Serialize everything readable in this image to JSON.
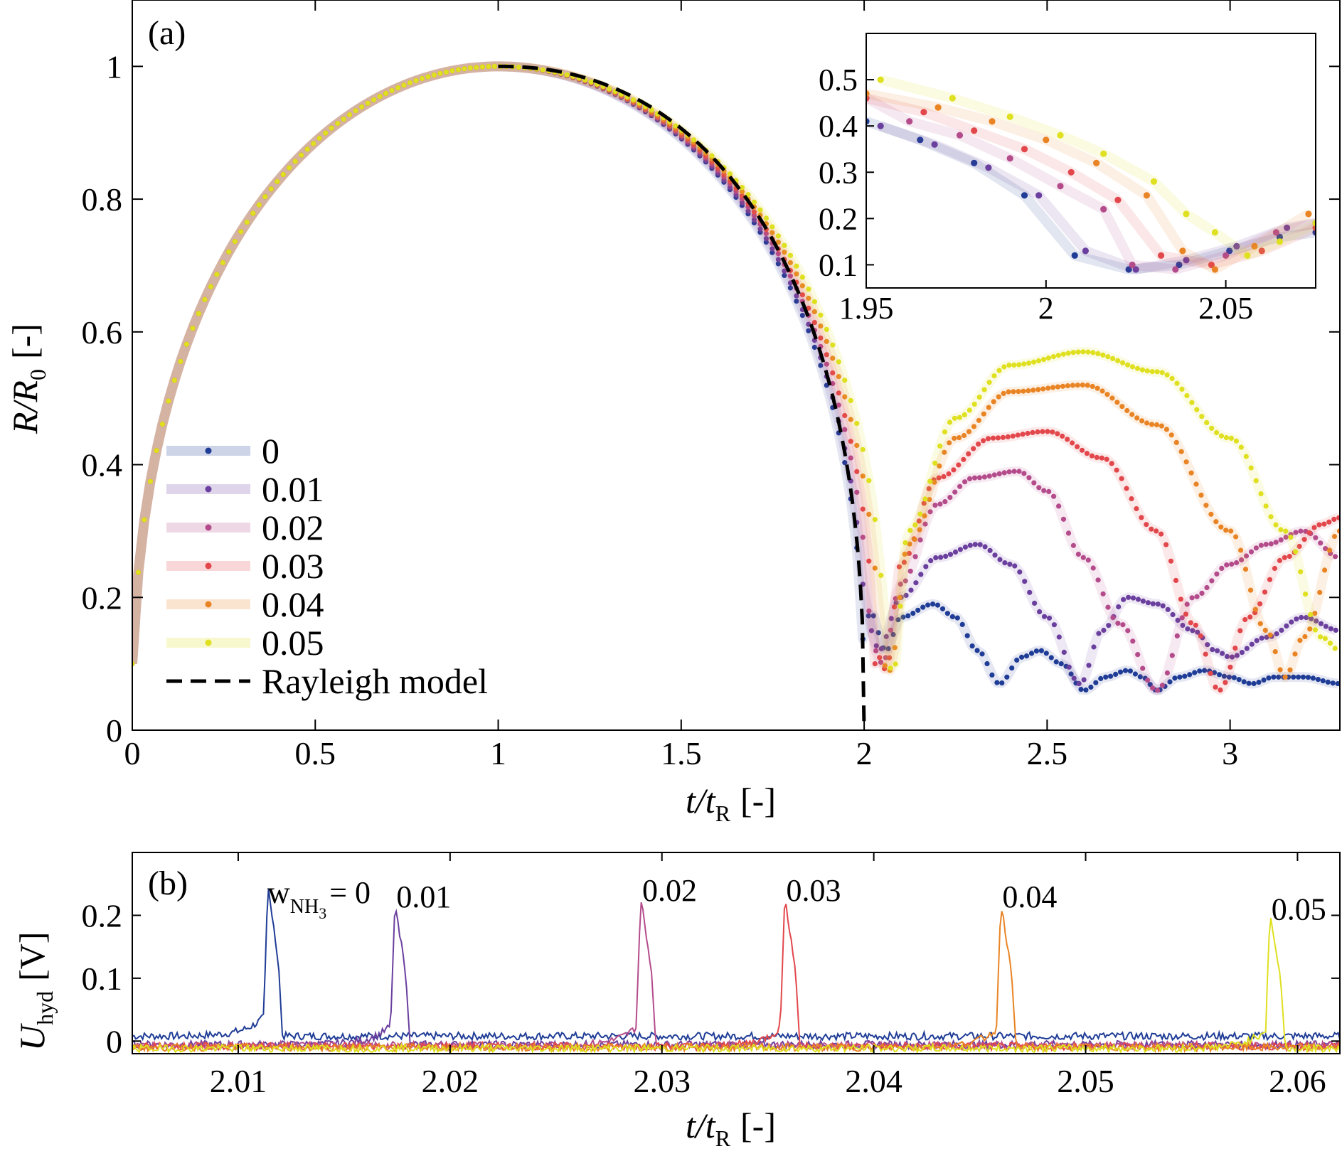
{
  "colors": {
    "0": "#1f3c96",
    "0.01": "#6a3f9e",
    "0.02": "#b44c8c",
    "0.03": "#e2474c",
    "0.04": "#e98424",
    "0.05": "#dfe020",
    "rayleigh": "#000000"
  },
  "chart_data": [
    {
      "type": "scatter",
      "panel_label": "(a)",
      "xlabel": {
        "main": "t/t",
        "sub": "R",
        "unit": "[-]"
      },
      "ylabel": {
        "main": "R/R",
        "sub": "0",
        "unit": "[-]"
      },
      "xlim": [
        0,
        3.3
      ],
      "ylim": [
        0,
        1.1
      ],
      "xticks": [
        0,
        0.5,
        1,
        1.5,
        2,
        2.5,
        3
      ],
      "xtick_labels": [
        "0",
        "0.5",
        "1",
        "1.5",
        "2",
        "2.5",
        "3"
      ],
      "yticks": [
        0,
        0.2,
        0.4,
        0.6,
        0.8,
        1
      ],
      "ytick_labels": [
        "0",
        "0.2",
        "0.4",
        "0.6",
        "0.8",
        "1"
      ],
      "legend_position": "lower-left",
      "series": [
        {
          "name": "0",
          "collapse_time": 2.0,
          "after_collapse": [
            [
              2.015,
              0.18
            ],
            [
              2.06,
              0.12
            ],
            [
              2.1,
              0.17
            ],
            [
              2.19,
              0.19
            ],
            [
              2.25,
              0.17
            ],
            [
              2.31,
              0.12
            ],
            [
              2.37,
              0.07
            ],
            [
              2.43,
              0.11
            ],
            [
              2.48,
              0.12
            ],
            [
              2.54,
              0.1
            ],
            [
              2.6,
              0.06
            ],
            [
              2.66,
              0.08
            ],
            [
              2.72,
              0.09
            ],
            [
              2.76,
              0.08
            ],
            [
              2.8,
              0.06
            ],
            [
              2.86,
              0.08
            ],
            [
              2.93,
              0.09
            ],
            [
              3.0,
              0.08
            ],
            [
              3.06,
              0.07
            ],
            [
              3.12,
              0.08
            ],
            [
              3.2,
              0.08
            ],
            [
              3.3,
              0.07
            ]
          ]
        },
        {
          "name": "0.01",
          "collapse_time": 2.008,
          "after_collapse": [
            [
              2.02,
              0.15
            ],
            [
              2.04,
              0.12
            ],
            [
              2.1,
              0.2
            ],
            [
              2.2,
              0.26
            ],
            [
              2.31,
              0.28
            ],
            [
              2.4,
              0.25
            ],
            [
              2.5,
              0.17
            ],
            [
              2.59,
              0.07
            ],
            [
              2.65,
              0.15
            ],
            [
              2.72,
              0.2
            ],
            [
              2.8,
              0.19
            ],
            [
              2.9,
              0.15
            ],
            [
              2.96,
              0.12
            ],
            [
              3.0,
              0.11
            ],
            [
              3.1,
              0.14
            ],
            [
              3.2,
              0.17
            ],
            [
              3.3,
              0.15
            ]
          ]
        },
        {
          "name": "0.02",
          "collapse_time": 2.02,
          "after_collapse": [
            [
              2.03,
              0.12
            ],
            [
              2.05,
              0.1
            ],
            [
              2.1,
              0.22
            ],
            [
              2.2,
              0.34
            ],
            [
              2.3,
              0.38
            ],
            [
              2.42,
              0.39
            ],
            [
              2.5,
              0.36
            ],
            [
              2.6,
              0.26
            ],
            [
              2.7,
              0.16
            ],
            [
              2.8,
              0.06
            ],
            [
              2.9,
              0.2
            ],
            [
              3.0,
              0.25
            ],
            [
              3.1,
              0.28
            ],
            [
              3.2,
              0.3
            ],
            [
              3.3,
              0.26
            ]
          ]
        },
        {
          "name": "0.03",
          "collapse_time": 2.03,
          "after_collapse": [
            [
              2.04,
              0.11
            ],
            [
              2.06,
              0.09
            ],
            [
              2.1,
              0.25
            ],
            [
              2.2,
              0.38
            ],
            [
              2.35,
              0.44
            ],
            [
              2.5,
              0.45
            ],
            [
              2.65,
              0.41
            ],
            [
              2.8,
              0.3
            ],
            [
              2.9,
              0.16
            ],
            [
              2.97,
              0.06
            ],
            [
              3.05,
              0.17
            ],
            [
              3.15,
              0.26
            ],
            [
              3.25,
              0.31
            ],
            [
              3.3,
              0.32
            ]
          ]
        },
        {
          "name": "0.04",
          "collapse_time": 2.045,
          "after_collapse": [
            [
              2.05,
              0.1
            ],
            [
              2.07,
              0.09
            ],
            [
              2.12,
              0.28
            ],
            [
              2.25,
              0.44
            ],
            [
              2.4,
              0.51
            ],
            [
              2.6,
              0.52
            ],
            [
              2.8,
              0.46
            ],
            [
              3.0,
              0.3
            ],
            [
              3.1,
              0.15
            ],
            [
              3.15,
              0.08
            ],
            [
              3.2,
              0.14
            ],
            [
              3.3,
              0.3
            ]
          ]
        },
        {
          "name": "0.05",
          "collapse_time": 2.06,
          "after_collapse": [
            [
              2.06,
              0.1
            ],
            [
              2.08,
              0.09
            ],
            [
              2.12,
              0.3
            ],
            [
              2.25,
              0.47
            ],
            [
              2.4,
              0.55
            ],
            [
              2.6,
              0.57
            ],
            [
              2.8,
              0.54
            ],
            [
              3.0,
              0.44
            ],
            [
              3.15,
              0.3
            ],
            [
              3.25,
              0.14
            ],
            [
              3.3,
              0.12
            ]
          ]
        }
      ],
      "rayleigh": {
        "name": "Rayleigh model",
        "x_start": 1.0,
        "x_end": 2.0,
        "y_start": 1.0,
        "y_end": 0.0
      }
    },
    {
      "type": "scatter",
      "inset_of": "(a)",
      "xlim": [
        1.95,
        2.075
      ],
      "ylim": [
        0.05,
        0.6
      ],
      "xticks": [
        1.95,
        2,
        2.05
      ],
      "xtick_labels": [
        "1.95",
        "2",
        "2.05"
      ],
      "yticks": [
        0.1,
        0.2,
        0.3,
        0.4,
        0.5
      ],
      "ytick_labels": [
        "0.1",
        "0.2",
        "0.3",
        "0.4",
        "0.5"
      ],
      "series": [
        {
          "name": "0",
          "points": [
            [
              1.95,
              0.41
            ],
            [
              1.965,
              0.37
            ],
            [
              1.98,
              0.32
            ],
            [
              1.994,
              0.25
            ],
            [
              2.008,
              0.12
            ],
            [
              2.023,
              0.09
            ],
            [
              2.037,
              0.1
            ],
            [
              2.051,
              0.13
            ],
            [
              2.065,
              0.16
            ],
            [
              2.075,
              0.17
            ]
          ]
        },
        {
          "name": "0.01",
          "points": [
            [
              1.954,
              0.4
            ],
            [
              1.969,
              0.36
            ],
            [
              1.984,
              0.31
            ],
            [
              1.998,
              0.25
            ],
            [
              2.011,
              0.13
            ],
            [
              2.025,
              0.09
            ],
            [
              2.039,
              0.11
            ],
            [
              2.053,
              0.14
            ],
            [
              2.067,
              0.18
            ],
            [
              2.075,
              0.19
            ]
          ]
        },
        {
          "name": "0.02",
          "points": [
            [
              1.95,
              0.46
            ],
            [
              1.962,
              0.41
            ],
            [
              1.976,
              0.38
            ],
            [
              1.99,
              0.33
            ],
            [
              2.004,
              0.27
            ],
            [
              2.016,
              0.22
            ],
            [
              2.024,
              0.1
            ],
            [
              2.036,
              0.09
            ],
            [
              2.05,
              0.12
            ],
            [
              2.064,
              0.17
            ],
            [
              2.075,
              0.19
            ]
          ]
        },
        {
          "name": "0.03",
          "points": [
            [
              1.95,
              0.46
            ],
            [
              1.966,
              0.43
            ],
            [
              1.98,
              0.39
            ],
            [
              1.994,
              0.35
            ],
            [
              2.007,
              0.3
            ],
            [
              2.02,
              0.24
            ],
            [
              2.032,
              0.12
            ],
            [
              2.046,
              0.1
            ],
            [
              2.06,
              0.13
            ],
            [
              2.075,
              0.18
            ]
          ]
        },
        {
          "name": "0.04",
          "points": [
            [
              1.95,
              0.47
            ],
            [
              1.97,
              0.44
            ],
            [
              1.985,
              0.41
            ],
            [
              2.0,
              0.37
            ],
            [
              2.014,
              0.32
            ],
            [
              2.028,
              0.25
            ],
            [
              2.038,
              0.13
            ],
            [
              2.047,
              0.09
            ],
            [
              2.058,
              0.14
            ],
            [
              2.073,
              0.21
            ]
          ]
        },
        {
          "name": "0.05",
          "points": [
            [
              1.954,
              0.5
            ],
            [
              1.974,
              0.46
            ],
            [
              1.99,
              0.42
            ],
            [
              2.004,
              0.38
            ],
            [
              2.016,
              0.34
            ],
            [
              2.03,
              0.28
            ],
            [
              2.039,
              0.21
            ],
            [
              2.047,
              0.17
            ],
            [
              2.056,
              0.12
            ],
            [
              2.065,
              0.15
            ],
            [
              2.075,
              0.19
            ]
          ]
        }
      ]
    },
    {
      "type": "line",
      "panel_label": "(b)",
      "xlabel": {
        "main": "t/t",
        "sub": "R",
        "unit": "[-]"
      },
      "ylabel": {
        "main": "U",
        "sub": "hyd",
        "unit": "[V]"
      },
      "xlim": [
        2.005,
        2.062
      ],
      "ylim": [
        -0.02,
        0.3
      ],
      "xticks": [
        2.01,
        2.02,
        2.03,
        2.04,
        2.05,
        2.06
      ],
      "xtick_labels": [
        "2.01",
        "2.02",
        "2.03",
        "2.04",
        "2.05",
        "2.06"
      ],
      "yticks": [
        0,
        0.1,
        0.2
      ],
      "ytick_labels": [
        "0",
        "0.1",
        "0.2"
      ],
      "first_label": {
        "prefix": "w",
        "sub_a": "NH",
        "sub_b": "3",
        "suffix": "= 0"
      },
      "series": [
        {
          "name": "0",
          "peak_t": 2.0112,
          "peak_u": 0.25,
          "label": ""
        },
        {
          "name": "0.01",
          "peak_t": 2.0172,
          "peak_u": 0.22,
          "label": "0.01"
        },
        {
          "name": "0.02",
          "peak_t": 2.0288,
          "peak_u": 0.23,
          "label": "0.02"
        },
        {
          "name": "0.03",
          "peak_t": 2.0356,
          "peak_u": 0.23,
          "label": "0.03"
        },
        {
          "name": "0.04",
          "peak_t": 2.0458,
          "peak_u": 0.22,
          "label": "0.04"
        },
        {
          "name": "0.05",
          "peak_t": 2.0585,
          "peak_u": 0.2,
          "label": "0.05"
        }
      ]
    }
  ]
}
